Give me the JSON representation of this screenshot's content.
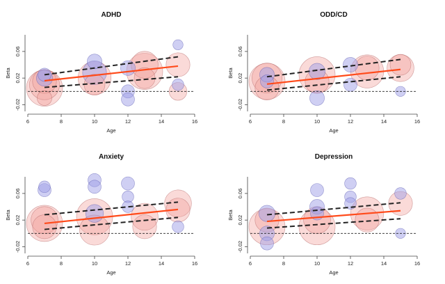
{
  "chart_data": [
    {
      "type": "scatter",
      "title": "ADHD",
      "xlabel": "Age",
      "ylabel": "Beta",
      "xlim": [
        6,
        16
      ],
      "ylim": [
        -0.03,
        0.085
      ],
      "xticks": [
        6,
        8,
        10,
        12,
        14,
        16
      ],
      "yticks": [
        -0.02,
        0.02,
        0.06
      ],
      "reference_line_y": 0,
      "series": [
        {
          "values": [
            {
              "x": 7.0,
              "y": 0.005,
              "size": 1.0,
              "group": "red"
            },
            {
              "x": 7.0,
              "y": 0.01,
              "size": 0.8,
              "group": "red"
            },
            {
              "x": 7.0,
              "y": 0.015,
              "size": 0.6,
              "group": "red"
            },
            {
              "x": 7.0,
              "y": 0.02,
              "size": 0.35,
              "group": "blue"
            },
            {
              "x": 7.0,
              "y": 0.025,
              "size": 0.25,
              "group": "blue"
            },
            {
              "x": 7.0,
              "y": -0.01,
              "size": 0.3,
              "group": "red"
            },
            {
              "x": 10.0,
              "y": 0.02,
              "size": 0.9,
              "group": "red"
            },
            {
              "x": 10.0,
              "y": 0.028,
              "size": 0.6,
              "group": "blue"
            },
            {
              "x": 10.0,
              "y": 0.045,
              "size": 0.3,
              "group": "blue"
            },
            {
              "x": 10.0,
              "y": 0.01,
              "size": 0.5,
              "group": "red"
            },
            {
              "x": 12.0,
              "y": 0.035,
              "size": 0.3,
              "group": "blue"
            },
            {
              "x": 12.0,
              "y": 0.0,
              "size": 0.25,
              "group": "blue"
            },
            {
              "x": 12.0,
              "y": -0.012,
              "size": 0.25,
              "group": "blue"
            },
            {
              "x": 13.0,
              "y": 0.03,
              "size": 1.0,
              "group": "red"
            },
            {
              "x": 13.0,
              "y": 0.04,
              "size": 0.7,
              "group": "red"
            },
            {
              "x": 13.0,
              "y": 0.02,
              "size": 0.5,
              "group": "red"
            },
            {
              "x": 15.0,
              "y": 0.04,
              "size": 0.6,
              "group": "red"
            },
            {
              "x": 15.0,
              "y": 0.07,
              "size": 0.15,
              "group": "blue"
            },
            {
              "x": 15.0,
              "y": 0.01,
              "size": 0.2,
              "group": "blue"
            },
            {
              "x": 15.0,
              "y": 0.0,
              "size": 0.4,
              "group": "red"
            }
          ]
        }
      ],
      "fit_line": {
        "x": [
          7,
          15
        ],
        "y": [
          0.016,
          0.038
        ]
      },
      "ci_upper": {
        "x": [
          7,
          15
        ],
        "y": [
          0.025,
          0.052
        ]
      },
      "ci_lower": {
        "x": [
          7,
          15
        ],
        "y": [
          0.006,
          0.022
        ]
      }
    },
    {
      "type": "scatter",
      "title": "ODD/CD",
      "xlabel": "Age",
      "ylabel": "Beta",
      "xlim": [
        6,
        16
      ],
      "ylim": [
        -0.03,
        0.085
      ],
      "xticks": [
        6,
        8,
        10,
        12,
        14,
        16
      ],
      "yticks": [
        -0.02,
        0.02,
        0.06
      ],
      "reference_line_y": 0,
      "series": [
        {
          "values": [
            {
              "x": 7.0,
              "y": 0.015,
              "size": 1.0,
              "group": "red"
            },
            {
              "x": 7.0,
              "y": 0.02,
              "size": 0.8,
              "group": "red"
            },
            {
              "x": 7.0,
              "y": 0.025,
              "size": 0.3,
              "group": "blue"
            },
            {
              "x": 7.0,
              "y": 0.015,
              "size": 0.25,
              "group": "blue"
            },
            {
              "x": 7.0,
              "y": 0.005,
              "size": 0.6,
              "group": "red"
            },
            {
              "x": 10.0,
              "y": 0.025,
              "size": 1.0,
              "group": "red"
            },
            {
              "x": 10.0,
              "y": 0.03,
              "size": 0.35,
              "group": "blue"
            },
            {
              "x": 10.0,
              "y": 0.015,
              "size": 0.6,
              "group": "red"
            },
            {
              "x": 10.0,
              "y": -0.01,
              "size": 0.3,
              "group": "blue"
            },
            {
              "x": 12.0,
              "y": 0.04,
              "size": 0.3,
              "group": "blue"
            },
            {
              "x": 12.0,
              "y": 0.01,
              "size": 0.25,
              "group": "blue"
            },
            {
              "x": 13.0,
              "y": 0.03,
              "size": 0.9,
              "group": "red"
            },
            {
              "x": 13.0,
              "y": 0.035,
              "size": 0.6,
              "group": "red"
            },
            {
              "x": 15.0,
              "y": 0.035,
              "size": 0.7,
              "group": "red"
            },
            {
              "x": 15.0,
              "y": 0.04,
              "size": 0.5,
              "group": "red"
            },
            {
              "x": 15.0,
              "y": 0.0,
              "size": 0.15,
              "group": "blue"
            }
          ]
        }
      ],
      "fit_line": {
        "x": [
          7,
          15
        ],
        "y": [
          0.011,
          0.033
        ]
      },
      "ci_upper": {
        "x": [
          7,
          15
        ],
        "y": [
          0.022,
          0.048
        ]
      },
      "ci_lower": {
        "x": [
          7,
          15
        ],
        "y": [
          0.002,
          0.022
        ]
      }
    },
    {
      "type": "scatter",
      "title": "Anxiety",
      "xlabel": "Age",
      "ylabel": "Beta",
      "xlim": [
        6,
        16
      ],
      "ylim": [
        -0.03,
        0.085
      ],
      "xticks": [
        6,
        8,
        10,
        12,
        14,
        16
      ],
      "yticks": [
        -0.02,
        0.02,
        0.06
      ],
      "reference_line_y": 0,
      "series": [
        {
          "values": [
            {
              "x": 7.0,
              "y": 0.015,
              "size": 1.0,
              "group": "red"
            },
            {
              "x": 7.0,
              "y": 0.02,
              "size": 0.7,
              "group": "red"
            },
            {
              "x": 7.0,
              "y": 0.065,
              "size": 0.25,
              "group": "blue"
            },
            {
              "x": 7.0,
              "y": 0.07,
              "size": 0.2,
              "group": "blue"
            },
            {
              "x": 7.0,
              "y": 0.01,
              "size": 0.6,
              "group": "red"
            },
            {
              "x": 10.0,
              "y": 0.025,
              "size": 1.0,
              "group": "red"
            },
            {
              "x": 10.0,
              "y": 0.005,
              "size": 0.8,
              "group": "red"
            },
            {
              "x": 10.0,
              "y": 0.08,
              "size": 0.25,
              "group": "blue"
            },
            {
              "x": 10.0,
              "y": 0.07,
              "size": 0.25,
              "group": "blue"
            },
            {
              "x": 10.0,
              "y": 0.03,
              "size": 0.4,
              "group": "blue"
            },
            {
              "x": 12.0,
              "y": 0.075,
              "size": 0.25,
              "group": "blue"
            },
            {
              "x": 12.0,
              "y": 0.055,
              "size": 0.2,
              "group": "blue"
            },
            {
              "x": 12.0,
              "y": 0.04,
              "size": 0.2,
              "group": "blue"
            },
            {
              "x": 13.0,
              "y": 0.025,
              "size": 0.7,
              "group": "red"
            },
            {
              "x": 13.0,
              "y": 0.01,
              "size": 0.6,
              "group": "red"
            },
            {
              "x": 15.0,
              "y": 0.045,
              "size": 0.7,
              "group": "red"
            },
            {
              "x": 15.0,
              "y": 0.035,
              "size": 0.6,
              "group": "red"
            },
            {
              "x": 15.0,
              "y": 0.01,
              "size": 0.2,
              "group": "blue"
            }
          ]
        }
      ],
      "fit_line": {
        "x": [
          7,
          15
        ],
        "y": [
          0.015,
          0.036
        ]
      },
      "ci_upper": {
        "x": [
          7,
          15
        ],
        "y": [
          0.028,
          0.047
        ]
      },
      "ci_lower": {
        "x": [
          7,
          15
        ],
        "y": [
          0.006,
          0.024
        ]
      }
    },
    {
      "type": "scatter",
      "title": "Depression",
      "xlabel": "Age",
      "ylabel": "Beta",
      "xlim": [
        6,
        16
      ],
      "ylim": [
        -0.03,
        0.085
      ],
      "xticks": [
        6,
        8,
        10,
        12,
        14,
        16
      ],
      "yticks": [
        -0.02,
        0.02,
        0.06
      ],
      "reference_line_y": 0,
      "series": [
        {
          "values": [
            {
              "x": 7.0,
              "y": 0.01,
              "size": 1.0,
              "group": "red"
            },
            {
              "x": 7.0,
              "y": 0.02,
              "size": 0.6,
              "group": "red"
            },
            {
              "x": 7.0,
              "y": 0.03,
              "size": 0.35,
              "group": "blue"
            },
            {
              "x": 7.0,
              "y": 0.0,
              "size": 0.3,
              "group": "blue"
            },
            {
              "x": 7.0,
              "y": -0.015,
              "size": 0.25,
              "group": "blue"
            },
            {
              "x": 10.0,
              "y": 0.01,
              "size": 1.0,
              "group": "red"
            },
            {
              "x": 10.0,
              "y": 0.02,
              "size": 0.7,
              "group": "red"
            },
            {
              "x": 10.0,
              "y": 0.065,
              "size": 0.25,
              "group": "blue"
            },
            {
              "x": 10.0,
              "y": 0.04,
              "size": 0.3,
              "group": "blue"
            },
            {
              "x": 10.0,
              "y": 0.03,
              "size": 0.25,
              "group": "blue"
            },
            {
              "x": 12.0,
              "y": 0.075,
              "size": 0.2,
              "group": "blue"
            },
            {
              "x": 12.0,
              "y": 0.055,
              "size": 0.2,
              "group": "blue"
            },
            {
              "x": 12.0,
              "y": 0.045,
              "size": 0.2,
              "group": "blue"
            },
            {
              "x": 13.0,
              "y": 0.03,
              "size": 0.9,
              "group": "red"
            },
            {
              "x": 13.0,
              "y": 0.02,
              "size": 0.6,
              "group": "red"
            },
            {
              "x": 15.0,
              "y": 0.045,
              "size": 0.6,
              "group": "red"
            },
            {
              "x": 15.0,
              "y": 0.06,
              "size": 0.2,
              "group": "blue"
            },
            {
              "x": 15.0,
              "y": 0.0,
              "size": 0.15,
              "group": "blue"
            }
          ]
        }
      ],
      "fit_line": {
        "x": [
          7,
          15
        ],
        "y": [
          0.018,
          0.034
        ]
      },
      "ci_upper": {
        "x": [
          7,
          15
        ],
        "y": [
          0.028,
          0.046
        ]
      },
      "ci_lower": {
        "x": [
          7,
          15
        ],
        "y": [
          0.008,
          0.022
        ]
      }
    }
  ],
  "colors": {
    "red_fill": "#f4a7a3",
    "red_stroke": "#b06060",
    "blue_fill": "#9fa0e8",
    "blue_stroke": "#5a5ab0",
    "fit_line": "#ff4a1a",
    "ci_line": "#222222"
  }
}
